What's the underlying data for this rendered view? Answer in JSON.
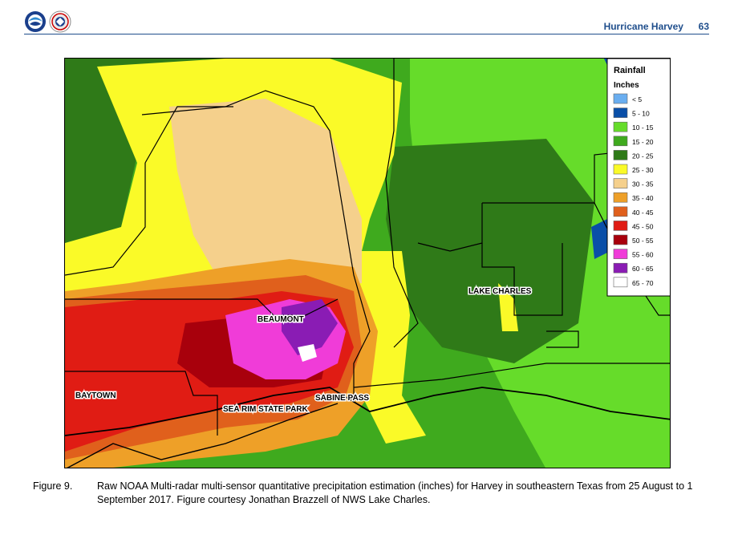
{
  "header": {
    "title": "Hurricane Harvey",
    "page_number": "63"
  },
  "map": {
    "legend": {
      "title": "Rainfall",
      "units": "Inches",
      "items": [
        {
          "label": "< 5",
          "color": "#6aaef0"
        },
        {
          "label": "5 - 10",
          "color": "#0a4fa8"
        },
        {
          "label": "10 - 15",
          "color": "#66dc2a"
        },
        {
          "label": "15 - 20",
          "color": "#3faa1e"
        },
        {
          "label": "20 - 25",
          "color": "#2f7a18"
        },
        {
          "label": "25 - 30",
          "color": "#fafa28"
        },
        {
          "label": "30 - 35",
          "color": "#f5d08c"
        },
        {
          "label": "35 - 40",
          "color": "#eea028"
        },
        {
          "label": "40 - 45",
          "color": "#e0601c"
        },
        {
          "label": "45 - 50",
          "color": "#e01c14"
        },
        {
          "label": "50 - 55",
          "color": "#a8000c"
        },
        {
          "label": "55 - 60",
          "color": "#f03cd8"
        },
        {
          "label": "60 - 65",
          "color": "#8a1cb4"
        },
        {
          "label": "65 - 70",
          "color": "#ffffff"
        }
      ]
    },
    "places": {
      "beaumont": "BEAUMONT",
      "lake_charles": "LAKE CHARLES",
      "baytown": "BAYTOWN",
      "sea_rim": "SEA RIM STATE PARK",
      "sabine_pass": "SABINE PASS"
    }
  },
  "caption": {
    "label": "Figure 9.",
    "text": "Raw NOAA Multi-radar multi-sensor quantitative precipitation estimation (inches) for Harvey in southeastern Texas from 25 August to 1 September 2017.  Figure courtesy Jonathan Brazzell of NWS Lake Charles."
  }
}
